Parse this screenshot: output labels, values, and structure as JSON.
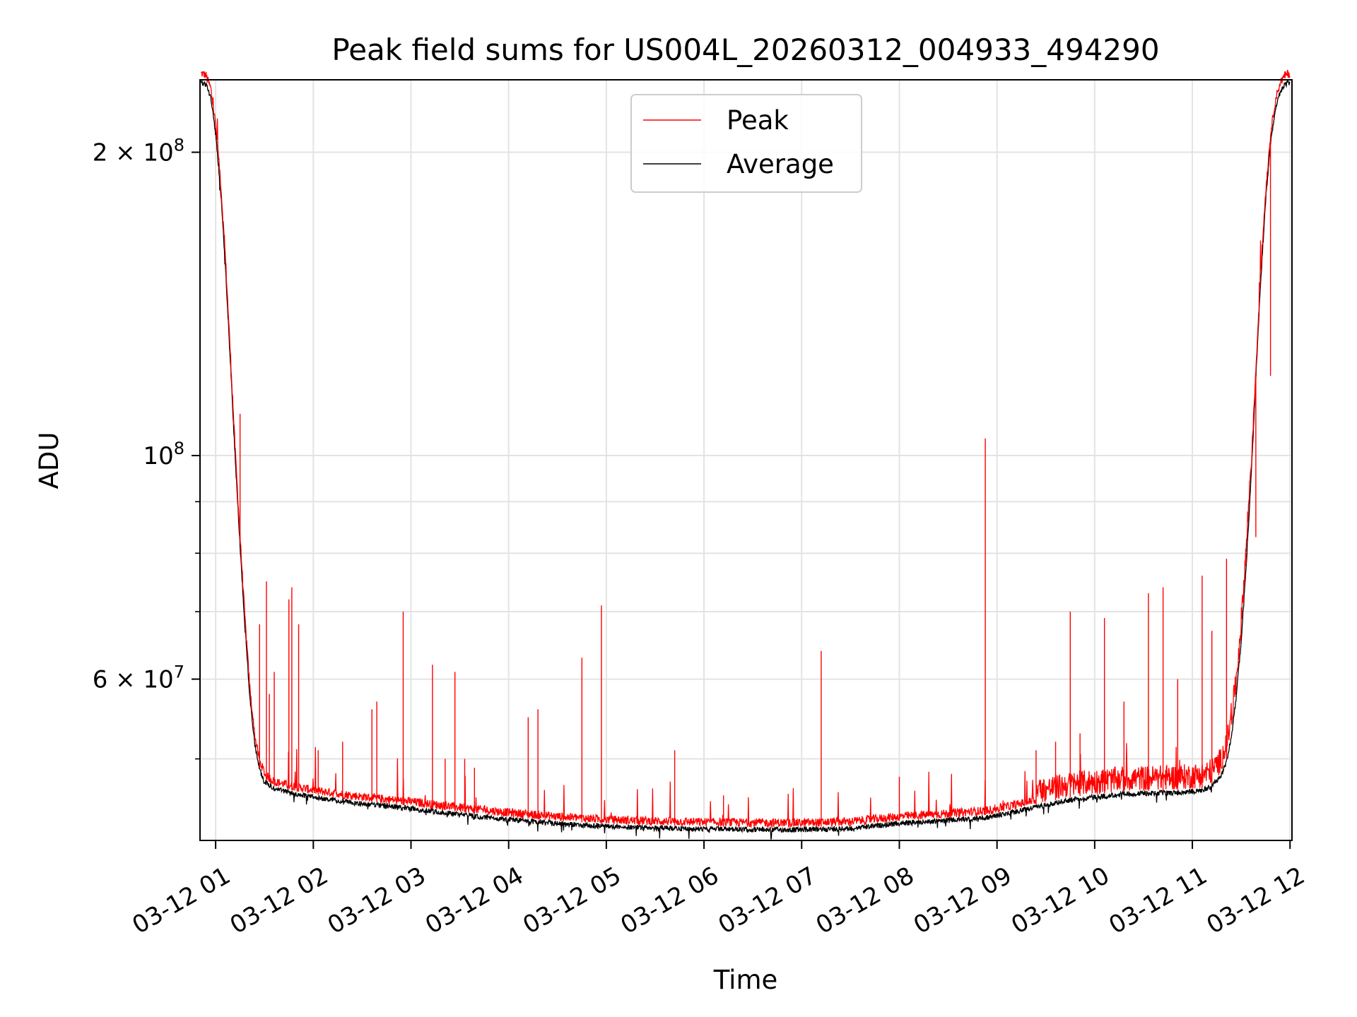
{
  "chart_data": {
    "type": "line",
    "title": "Peak field sums for US004L_20260312_004933_494290",
    "xlabel": "Time",
    "ylabel": "ADU",
    "yscale": "log",
    "ylim": [
      41500000,
      236000000
    ],
    "xlim": [
      0.84,
      12.02
    ],
    "grid": true,
    "legend": {
      "position": "upper center",
      "entries": [
        "Peak",
        "Average"
      ]
    },
    "colors": {
      "peak": "#ff0000",
      "average": "#000000",
      "grid": "#e3e3e3"
    },
    "x_ticks": [
      {
        "value": 1,
        "label": "03-12 01"
      },
      {
        "value": 2,
        "label": "03-12 02"
      },
      {
        "value": 3,
        "label": "03-12 03"
      },
      {
        "value": 4,
        "label": "03-12 04"
      },
      {
        "value": 5,
        "label": "03-12 05"
      },
      {
        "value": 6,
        "label": "03-12 06"
      },
      {
        "value": 7,
        "label": "03-12 07"
      },
      {
        "value": 8,
        "label": "03-12 08"
      },
      {
        "value": 9,
        "label": "03-12 09"
      },
      {
        "value": 10,
        "label": "03-12 10"
      },
      {
        "value": 11,
        "label": "03-12 11"
      },
      {
        "value": 12,
        "label": "03-12 12"
      }
    ],
    "y_major_ticks": [
      {
        "value": 200000000,
        "mantissa": "2",
        "exp": "8"
      },
      {
        "value": 100000000,
        "mantissa": "",
        "exp": "8"
      },
      {
        "value": 60000000,
        "mantissa": "6",
        "exp": "7"
      }
    ],
    "y_minor_ticks": [
      50000000,
      70000000,
      80000000,
      90000000
    ],
    "series": [
      {
        "name": "Average",
        "points": [
          [
            0.85,
            236000000
          ],
          [
            0.9,
            235000000
          ],
          [
            0.95,
            228000000
          ],
          [
            1.0,
            210000000
          ],
          [
            1.05,
            185000000
          ],
          [
            1.1,
            155000000
          ],
          [
            1.15,
            125000000
          ],
          [
            1.2,
            100000000
          ],
          [
            1.25,
            82000000
          ],
          [
            1.3,
            68000000
          ],
          [
            1.35,
            58000000
          ],
          [
            1.4,
            52000000
          ],
          [
            1.45,
            49000000
          ],
          [
            1.5,
            47800000
          ],
          [
            1.6,
            47000000
          ],
          [
            1.8,
            46500000
          ],
          [
            2.0,
            46100000
          ],
          [
            2.5,
            45400000
          ],
          [
            3.0,
            44900000
          ],
          [
            3.5,
            44300000
          ],
          [
            4.0,
            43800000
          ],
          [
            4.5,
            43400000
          ],
          [
            5.0,
            43100000
          ],
          [
            5.5,
            42950000
          ],
          [
            6.0,
            42850000
          ],
          [
            6.5,
            42800000
          ],
          [
            7.0,
            42780000
          ],
          [
            7.5,
            42900000
          ],
          [
            8.0,
            43400000
          ],
          [
            8.5,
            43700000
          ],
          [
            8.9,
            44000000
          ],
          [
            9.2,
            44600000
          ],
          [
            9.5,
            45300000
          ],
          [
            9.8,
            45900000
          ],
          [
            10.0,
            46100000
          ],
          [
            10.3,
            46400000
          ],
          [
            10.6,
            46500000
          ],
          [
            10.9,
            46600000
          ],
          [
            11.1,
            46800000
          ],
          [
            11.2,
            47300000
          ],
          [
            11.3,
            48500000
          ],
          [
            11.35,
            50000000
          ],
          [
            11.4,
            53000000
          ],
          [
            11.45,
            58000000
          ],
          [
            11.5,
            66000000
          ],
          [
            11.55,
            78000000
          ],
          [
            11.6,
            95000000
          ],
          [
            11.65,
            120000000
          ],
          [
            11.7,
            150000000
          ],
          [
            11.75,
            180000000
          ],
          [
            11.8,
            205000000
          ],
          [
            11.85,
            222000000
          ],
          [
            11.9,
            231000000
          ],
          [
            11.95,
            235000000
          ],
          [
            12.0,
            236000000
          ]
        ]
      },
      {
        "name": "Peak",
        "spikes": [
          [
            1.25,
            110000000
          ],
          [
            1.45,
            68000000
          ],
          [
            1.52,
            75000000
          ],
          [
            1.55,
            58000000
          ],
          [
            1.6,
            61000000
          ],
          [
            1.75,
            72000000
          ],
          [
            1.78,
            74000000
          ],
          [
            1.85,
            68000000
          ],
          [
            2.05,
            51000000
          ],
          [
            2.3,
            52000000
          ],
          [
            2.6,
            56000000
          ],
          [
            2.65,
            57000000
          ],
          [
            2.92,
            70000000
          ],
          [
            3.22,
            62000000
          ],
          [
            3.35,
            50000000
          ],
          [
            3.45,
            61000000
          ],
          [
            3.55,
            50000000
          ],
          [
            3.65,
            49000000
          ],
          [
            4.2,
            55000000
          ],
          [
            4.3,
            56000000
          ],
          [
            4.75,
            63000000
          ],
          [
            4.95,
            71000000
          ],
          [
            5.7,
            51000000
          ],
          [
            6.2,
            46000000
          ],
          [
            7.2,
            64000000
          ],
          [
            8.0,
            48000000
          ],
          [
            8.88,
            104000000
          ],
          [
            9.4,
            51000000
          ],
          [
            9.6,
            52000000
          ],
          [
            9.75,
            70000000
          ],
          [
            9.85,
            53000000
          ],
          [
            10.1,
            69000000
          ],
          [
            10.3,
            57000000
          ],
          [
            10.55,
            73000000
          ],
          [
            10.7,
            74000000
          ],
          [
            10.85,
            60000000
          ],
          [
            11.1,
            76000000
          ],
          [
            11.2,
            67000000
          ],
          [
            11.35,
            79000000
          ],
          [
            11.55,
            80000000
          ],
          [
            11.65,
            83000000
          ],
          [
            11.8,
            120000000
          ]
        ]
      }
    ]
  }
}
